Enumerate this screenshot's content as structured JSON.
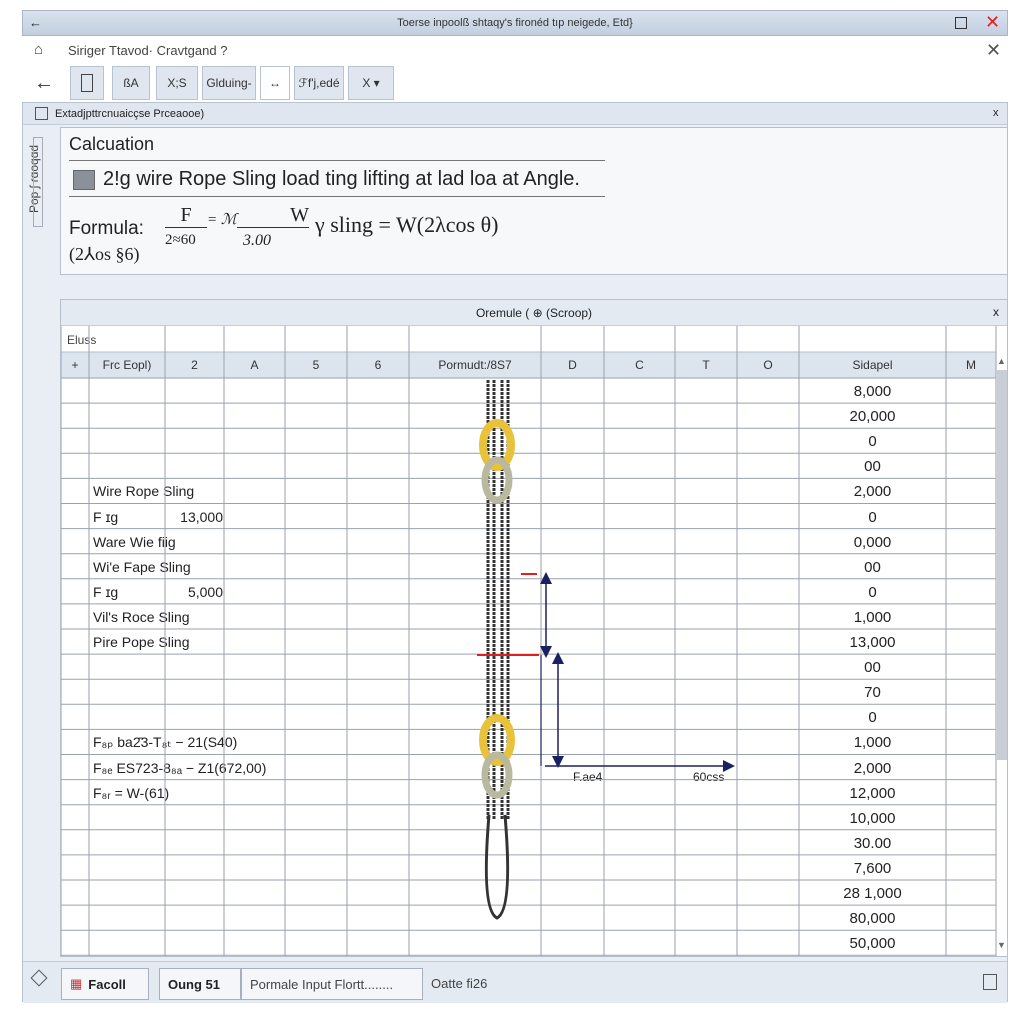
{
  "window": {
    "title": "Toerse inpoolß shtaqy's fironéd tıp neigede, Etd}",
    "back_icon": "arrow-left",
    "maximize_icon": "square",
    "close_icon": "x",
    "close_color": "#e02020"
  },
  "subbar": {
    "breadcrumb": "Siriger  Ttavod·  Cravtgand ?"
  },
  "toolbar": {
    "items": [
      "",
      "ßA",
      "X;S",
      "Glduing-",
      "↔",
      "ℱf'j,edé",
      "X ▾"
    ]
  },
  "panel": {
    "title": "Extadjpttrcnuaicçse Prceaooe)",
    "side_label": "Pop ʃ ɾɑoqɑd",
    "close": "x"
  },
  "calc": {
    "title": "Calcuation",
    "subtitle": "2!g wire Rope Sling load ting lifting at lad loa at Angle.",
    "formula_label": "Formula:",
    "f_num": "F",
    "f_den": "2≈60",
    "f_mid": "= ℳ",
    "w_num": "W",
    "w_den": "3.00",
    "tail": "γ sling = W(2λcos θ)",
    "line2": "(2⅄os §6)"
  },
  "grid": {
    "title": "Oremule ( ⊕ (Scroop)",
    "close": "x",
    "row0_label": "Eluss",
    "headers": [
      "+",
      "Frc Eopl)",
      "2",
      "A",
      "5",
      "6",
      "Pormudt:/8S7",
      "D",
      "C",
      "T",
      "O",
      "Sidapel",
      "M"
    ],
    "sidapel_values": [
      "8,000",
      "20,000",
      "0",
      "00",
      "2,000",
      "0",
      "0,000",
      "00",
      "0",
      "1,000",
      "13,000",
      "00",
      "70",
      "0",
      "1,000",
      "2,000",
      "12,000",
      "10,000",
      "30.00",
      "7,600",
      "28 1,000",
      "80,000",
      "50,000"
    ],
    "left_rows": [
      {
        "row": 4,
        "text": "Wire Rope Sling"
      },
      {
        "row": 5,
        "text": "F ɪg",
        "value": "13,000"
      },
      {
        "row": 6,
        "text": "Ware Wie fiig"
      },
      {
        "row": 7,
        "text": "Wi'e Fape Sling"
      },
      {
        "row": 8,
        "text": "F ɪg",
        "value": "5,000"
      },
      {
        "row": 9,
        "text": "Vil's Roce Sling"
      },
      {
        "row": 10,
        "text": "Pire Pope Sling"
      },
      {
        "row": 14,
        "text": "F₈ₚ ba2̄3-T₈ₜ − 21(S40)"
      },
      {
        "row": 15,
        "text": "F₈ₑ ES723-8₈ₐ − Z1(672,00)"
      },
      {
        "row": 16,
        "text": "F₈ᵣ = W-(61)"
      }
    ],
    "diagram": {
      "label_left": "F.ae4",
      "label_right": "60css",
      "rope_color": "#333",
      "shackle_color": "#e8c23a",
      "marker_color": "#e02020",
      "arrow_color": "#1a2060"
    }
  },
  "status": {
    "btn1": "Facoll",
    "btn2": "Oung 51",
    "input": "Pormale Input Flortt........",
    "text": "Oatte fi26"
  }
}
